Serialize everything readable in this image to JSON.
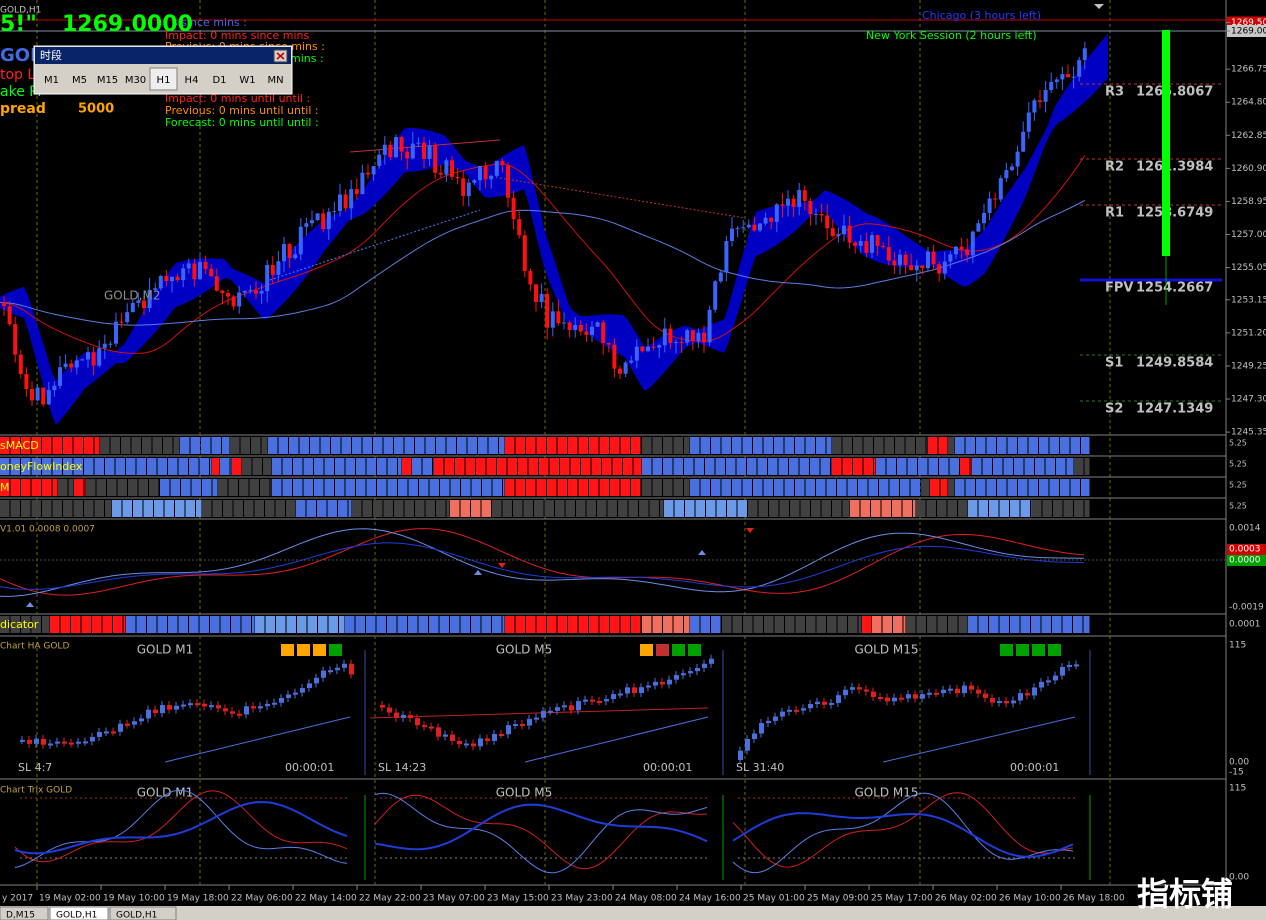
{
  "window_title": "GOLD,H1",
  "overlay": {
    "big_number": "5!\"",
    "price": "1269.0000",
    "symbol": "GOLD",
    "stop_loss": "top Lo",
    "take_profit": "ake Pr",
    "spread_label": "pread",
    "spread": "5000"
  },
  "news_since": [
    "s since  mins :",
    "Impact: 0 mins since  mins",
    "Previous: 0 mins since  mins :",
    "mins :"
  ],
  "news_until": [
    "Impact: 0 mins until until :",
    "Previous: 0 mins until until :",
    "Forecast: 0 mins until until :"
  ],
  "sessions": [
    "Chicago (3 hours left)",
    "New York Session (2 hours left)"
  ],
  "period_dialog": {
    "title": "时段",
    "buttons": [
      "M1",
      "M5",
      "M15",
      "M30",
      "H1",
      "H4",
      "D1",
      "W1",
      "MN"
    ]
  },
  "watermark": "GOLD,M2",
  "pivots": [
    {
      "label": "R3",
      "value": "1265.8067"
    },
    {
      "label": "R2",
      "value": "1261.3984"
    },
    {
      "label": "R1",
      "value": "1258.6749"
    },
    {
      "label": "FPV",
      "value": "1254.2667"
    },
    {
      "label": "S1",
      "value": "1249.8584"
    },
    {
      "label": "S2",
      "value": "1247.1349"
    }
  ],
  "price_axis": [
    "1269.50",
    "1269.00",
    "1266.75",
    "1264.80",
    "1262.85",
    "1260.90",
    "1258.95",
    "1257.00",
    "1255.05",
    "1253.15",
    "1251.20",
    "1249.25",
    "1247.30",
    "1245.35"
  ],
  "indicator_rows": [
    "sMACD",
    "oneyFlowIndex",
    "M"
  ],
  "indicator_axis": "5.25",
  "macd_panel": {
    "label": "V1.01 0.0008 0.0007",
    "axis": [
      "0.0014",
      "0.0003",
      "0.0000",
      "-0.0019"
    ]
  },
  "signal_row": {
    "label": "dicator",
    "axis": "0.0001"
  },
  "ha_panel": {
    "label": "Chart HA GOLD",
    "titles": [
      "GOLD M1",
      "GOLD M5",
      "GOLD M15"
    ],
    "sl": [
      "SL 4:7",
      "SL 14:23",
      "SL 31:40"
    ],
    "timers": [
      "00:00:01",
      "00:00:01",
      "00:00:01"
    ],
    "axis": [
      "115",
      "0.00",
      "-15"
    ]
  },
  "trix_panel": {
    "label": "Chart Trix GOLD",
    "titles": [
      "GOLD M1",
      "GOLD M5",
      "GOLD M15"
    ],
    "axis": [
      "115",
      "0.00"
    ]
  },
  "time_axis": [
    "y 2017",
    "19 May 02:00",
    "19 May 10:00",
    "19 May 18:00",
    "22 May 06:00",
    "22 May 14:00",
    "22 May 22:00",
    "23 May 07:00",
    "23 May 15:00",
    "23 May 23:00",
    "24 May 08:00",
    "24 May 16:00",
    "25 May 01:00",
    "25 May 09:00",
    "25 May 17:00",
    "26 May 02:00",
    "26 May 10:00",
    "26 May 18:00"
  ],
  "tabs": [
    "D,M15",
    "GOLD,H1",
    "GOLD,H1"
  ],
  "brand": "指标铺"
}
